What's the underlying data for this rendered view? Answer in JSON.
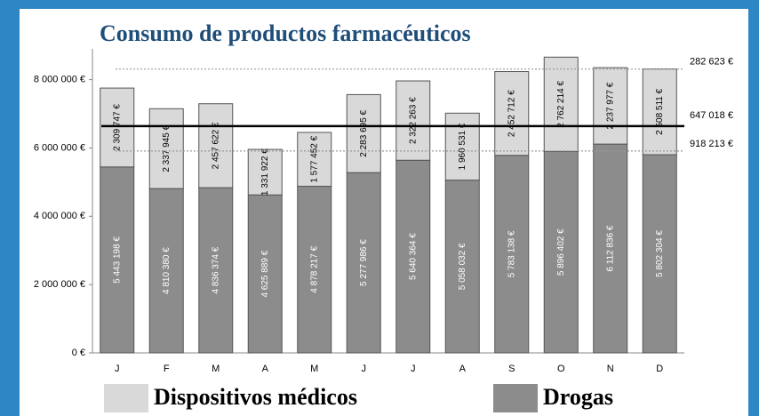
{
  "chart_data": {
    "type": "stacked_bar",
    "title": "Consumo de productos farmacéuticos",
    "categories": [
      "J",
      "F",
      "M",
      "A",
      "M",
      "J",
      "J",
      "A",
      "S",
      "O",
      "N",
      "D"
    ],
    "series": [
      {
        "name": "Drogas",
        "color": "#8c8c8c",
        "label_color": "#ffffff",
        "values": [
          5443198,
          4810380,
          4836374,
          4625889,
          4878217,
          5277986,
          5640364,
          5058032,
          5783138,
          5896402,
          6112836,
          5802304
        ],
        "value_labels": [
          "5 443 198 €",
          "4 810 380 €",
          "4 836 374 €",
          "4 625 889 €",
          "4 878 217 €",
          "5 277 986 €",
          "5 640 364 €",
          "5 058 032 €",
          "5 783 138 €",
          "5 896 402 €",
          "6 112 836 €",
          "5 802 304 €"
        ]
      },
      {
        "name": "Dispositivos médicos",
        "color": "#d9d9d9",
        "label_color": "#000000",
        "values": [
          2309747,
          2337945,
          2457622,
          1331922,
          1577452,
          2283695,
          2322263,
          1960531,
          2452712,
          2762214,
          2237977,
          2508511
        ],
        "value_labels": [
          "2 309 747 €",
          "2 337 945 €",
          "2 457 622 €",
          "1 331 922 €",
          "1 577 452 €",
          "2 283 695 €",
          "2 322 263 €",
          "1 960 531 €",
          "2 452 712 €",
          "2 762 214 €",
          "2 237 977 €",
          "2 508 511 €"
        ]
      }
    ],
    "ylim": [
      0,
      8900000
    ],
    "yticks": [
      {
        "value": 0,
        "label": "0 €"
      },
      {
        "value": 2000000,
        "label": "2 000 000 €"
      },
      {
        "value": 4000000,
        "label": "4 000 000 €"
      },
      {
        "value": 6000000,
        "label": "6 000 000 €"
      },
      {
        "value": 8000000,
        "label": "8 000 000 €"
      }
    ],
    "reference_lines": [
      {
        "value": 8310000,
        "label": "282 623 €",
        "style": "dotted"
      },
      {
        "value": 6640000,
        "label": "647 018 €",
        "style": "solid"
      },
      {
        "value": 5910000,
        "label": "918 213 €",
        "style": "dotted"
      }
    ],
    "legend_order": [
      1,
      0
    ]
  }
}
